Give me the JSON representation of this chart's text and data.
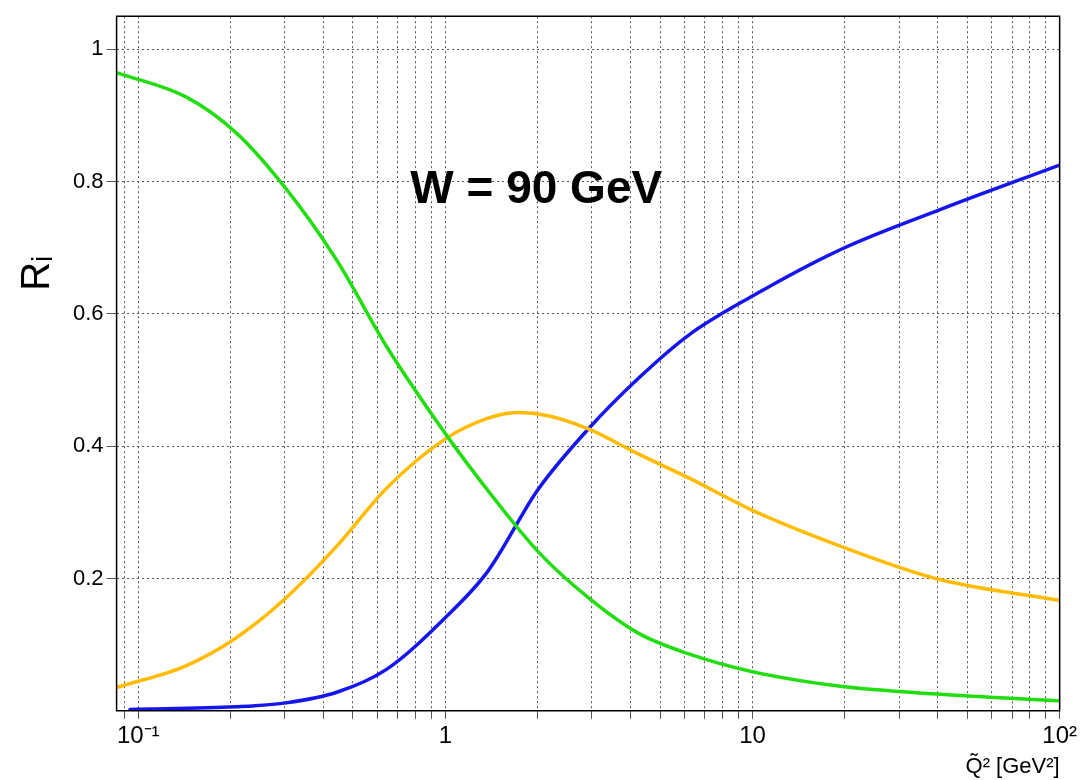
{
  "chart_data": {
    "type": "line",
    "xlabel": "Q̃² [GeV²]",
    "ylabel": "Rᵢ",
    "annotations": [
      "W = 90 GeV"
    ],
    "log": "x",
    "grid": true,
    "legend": false,
    "marker": "none",
    "line_style": "solid",
    "xlim": [
      0.085,
      100
    ],
    "ylim": [
      0,
      1.05
    ],
    "xticks": [
      {
        "value": 0.09,
        "label": null
      },
      {
        "value": 0.1,
        "label": "10⁻¹"
      },
      {
        "value": 0.2,
        "label": null
      },
      {
        "value": 0.3,
        "label": null
      },
      {
        "value": 0.4,
        "label": null
      },
      {
        "value": 0.5,
        "label": null
      },
      {
        "value": 0.6,
        "label": null
      },
      {
        "value": 0.7,
        "label": null
      },
      {
        "value": 0.8,
        "label": null
      },
      {
        "value": 0.9,
        "label": null
      },
      1,
      {
        "value": 2,
        "label": null
      },
      {
        "value": 3,
        "label": null
      },
      {
        "value": 4,
        "label": null
      },
      {
        "value": 5,
        "label": null
      },
      {
        "value": 6,
        "label": null
      },
      {
        "value": 7,
        "label": null
      },
      {
        "value": 8,
        "label": null
      },
      {
        "value": 9,
        "label": null
      },
      10,
      {
        "value": 20,
        "label": null
      },
      {
        "value": 30,
        "label": null
      },
      {
        "value": 40,
        "label": null
      },
      {
        "value": 50,
        "label": null
      },
      {
        "value": 60,
        "label": null
      },
      {
        "value": 70,
        "label": null
      },
      {
        "value": 80,
        "label": null
      },
      {
        "value": 90,
        "label": null
      },
      {
        "value": 100,
        "label": "10²"
      }
    ],
    "yticks": [
      0.2,
      0.4,
      0.6,
      0.8,
      1
    ],
    "series": [
      {
        "color": "#22dd11",
        "x": [
          0.086,
          0.143,
          0.208,
          0.303,
          0.443,
          0.645,
          1,
          1.37,
          2.0,
          2.92,
          4.26,
          6.2,
          10,
          19.3,
          41,
          100
        ],
        "values": [
          0.964,
          0.928,
          0.874,
          0.789,
          0.681,
          0.55,
          0.419,
          0.334,
          0.241,
          0.171,
          0.117,
          0.086,
          0.059,
          0.037,
          0.025,
          0.015
        ]
      },
      {
        "color": "#ffbb00",
        "x": [
          0.086,
          0.143,
          0.208,
          0.303,
          0.443,
          0.645,
          1,
          1.37,
          1.72,
          2.16,
          2.92,
          4.26,
          6.2,
          10,
          19.3,
          41,
          100
        ],
        "values": [
          0.036,
          0.068,
          0.11,
          0.171,
          0.249,
          0.337,
          0.411,
          0.442,
          0.451,
          0.446,
          0.426,
          0.388,
          0.352,
          0.303,
          0.249,
          0.198,
          0.167
        ]
      },
      {
        "color": "#1515ee",
        "x": [
          0.094,
          0.208,
          0.303,
          0.443,
          0.645,
          1,
          1.37,
          2.0,
          2.92,
          4.26,
          6.2,
          10,
          19.3,
          41,
          100
        ],
        "values": [
          0.002,
          0.006,
          0.012,
          0.028,
          0.063,
          0.141,
          0.21,
          0.334,
          0.426,
          0.503,
          0.568,
          0.627,
          0.697,
          0.758,
          0.825
        ]
      }
    ]
  }
}
